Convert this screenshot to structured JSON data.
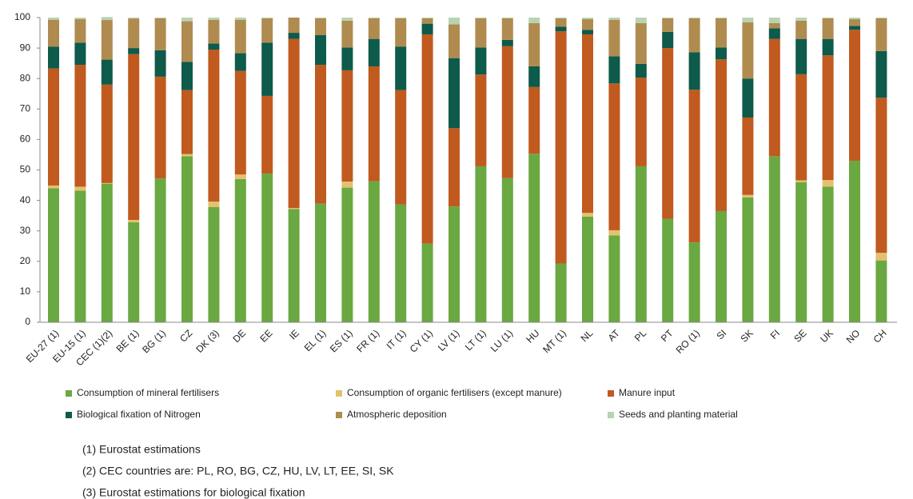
{
  "chart_data": {
    "type": "bar",
    "stacked": true,
    "categories": [
      "EU-27 (1)",
      "EU-15 (1)",
      "CEC (1)(2)",
      "BE (1)",
      "BG (1)",
      "CZ",
      "DK (3)",
      "DE",
      "EE",
      "IE",
      "EL (1)",
      "ES (1)",
      "FR (1)",
      "IT (1)",
      "CY (1)",
      "LV (1)",
      "LT (1)",
      "LU (1)",
      "HU",
      "MT (1)",
      "NL",
      "AT",
      "PL",
      "PT",
      "RO (1)",
      "SI",
      "SK",
      "FI",
      "SE",
      "UK",
      "NO",
      "CH"
    ],
    "series": [
      {
        "name": "Consumption of mineral fertilisers",
        "color": "#6aa842",
        "values": [
          44,
          43.2,
          45.5,
          32.8,
          47.2,
          54.5,
          37.8,
          47,
          48.8,
          37.2,
          39,
          44.2,
          46.3,
          38.7,
          25.8,
          38,
          51.2,
          47.3,
          55.3,
          19.3,
          34.7,
          28.5,
          51.2,
          34,
          26.2,
          36.5,
          41,
          54.5,
          46,
          44.5,
          53,
          20.3
        ]
      },
      {
        "name": "Consumption of organic fertilisers (except manure)",
        "color": "#e3c16f",
        "values": [
          0.9,
          1.3,
          0.2,
          0.8,
          0,
          0.7,
          1.8,
          1.5,
          0,
          0.3,
          0,
          2,
          0,
          0,
          0,
          0,
          0,
          0,
          0,
          0,
          1.2,
          1.7,
          0,
          0,
          0,
          0,
          0.8,
          0,
          0.6,
          2.2,
          0,
          2.5
        ]
      },
      {
        "name": "Manure input",
        "color": "#c05a1f",
        "values": [
          38.4,
          40,
          32.3,
          54.4,
          33.4,
          21,
          49.9,
          34,
          25.5,
          55.5,
          45.5,
          36.5,
          37.7,
          37.5,
          68.7,
          25.7,
          30.1,
          43.3,
          21.9,
          76.2,
          58.6,
          48.2,
          29.1,
          56,
          50.1,
          49.8,
          25.4,
          38.5,
          34.8,
          40.9,
          43,
          50.9
        ]
      },
      {
        "name": "Biological fixation of Nitrogen",
        "color": "#0e5a4b",
        "values": [
          7.2,
          7.3,
          8.2,
          2,
          8.7,
          9.3,
          2,
          5.8,
          17.5,
          2,
          9.8,
          7.5,
          9,
          14.3,
          3.5,
          23,
          8.9,
          2.1,
          6.8,
          1.5,
          1.5,
          8.9,
          4.5,
          5.3,
          12.3,
          3.9,
          12.8,
          3.5,
          11.6,
          5.4,
          1.3,
          15.3
        ]
      },
      {
        "name": "Atmospheric deposition",
        "color": "#b08b4f",
        "values": [
          8.8,
          7.7,
          13,
          9.7,
          10.5,
          13.3,
          7.8,
          11,
          8,
          5,
          5.5,
          8.8,
          6.8,
          9.3,
          1.8,
          11.1,
          9.6,
          7.1,
          14.2,
          2.8,
          3.5,
          12,
          13.4,
          4.5,
          11.2,
          9.6,
          18.5,
          1.7,
          6,
          6.8,
          2.2,
          10.8
        ]
      },
      {
        "name": "Seeds and planting material",
        "color": "#b8d3b2",
        "values": [
          0.7,
          0.5,
          1,
          0.3,
          0.2,
          1.2,
          0.7,
          0.7,
          0.2,
          0,
          0.2,
          1,
          0.2,
          0.2,
          0.2,
          2.2,
          0.2,
          0.2,
          1.8,
          0.2,
          0.5,
          0.7,
          1.8,
          0.2,
          0.2,
          0.2,
          1.5,
          1.8,
          1,
          0.2,
          0.5,
          0.2
        ]
      }
    ],
    "ylim": [
      0,
      100
    ],
    "yticks": [
      0,
      10,
      20,
      30,
      40,
      50,
      60,
      70,
      80,
      90,
      100
    ],
    "grid": false,
    "legend": "bottom",
    "notes": [
      "(1) Eurostat estimations",
      "(2) CEC countries are: PL, RO, BG, CZ, HU, LV, LT, EE, SI, SK",
      "(3) Eurostat estimations for biological fixation"
    ]
  }
}
